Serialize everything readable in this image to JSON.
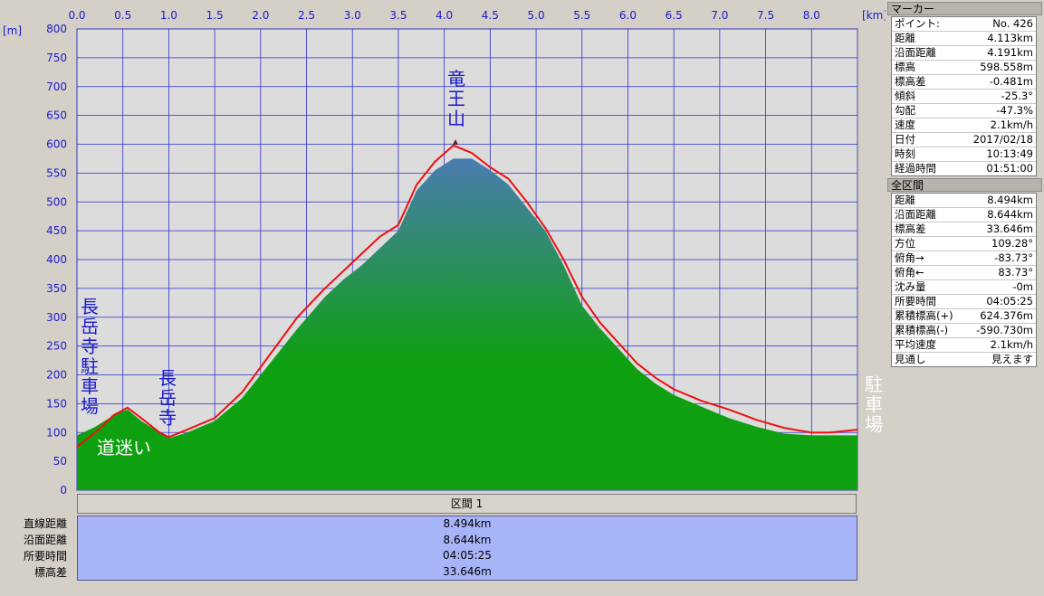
{
  "chart_data": {
    "type": "area",
    "xunit": "[km]",
    "yunit": "[m]",
    "xlim": [
      0,
      8.5
    ],
    "ylim": [
      0,
      800
    ],
    "xticks": [
      "0.0",
      "0.5",
      "1.0",
      "1.5",
      "2.0",
      "2.5",
      "3.0",
      "3.5",
      "4.0",
      "4.5",
      "5.0",
      "5.5",
      "6.0",
      "6.5",
      "7.0",
      "7.5",
      "8.0"
    ],
    "yticks": [
      "0",
      "50",
      "100",
      "150",
      "200",
      "250",
      "300",
      "350",
      "400",
      "450",
      "500",
      "550",
      "600",
      "650",
      "700",
      "750",
      "800"
    ],
    "series": [
      {
        "x": [
          0,
          0.2,
          0.4,
          0.55,
          0.7,
          0.9,
          1.0,
          1.2,
          1.5,
          1.8,
          2.1,
          2.4,
          2.7,
          2.9,
          3.1,
          3.3,
          3.5,
          3.7,
          3.9,
          4.1,
          4.3,
          4.5,
          4.7,
          4.9,
          5.1,
          5.3,
          5.5,
          5.7,
          5.9,
          6.1,
          6.3,
          6.5,
          6.8,
          7.1,
          7.4,
          7.7,
          8.0,
          8.2,
          8.5
        ],
        "y": [
          95,
          110,
          130,
          140,
          120,
          100,
          90,
          100,
          120,
          160,
          220,
          280,
          335,
          365,
          390,
          420,
          450,
          520,
          555,
          575,
          575,
          555,
          530,
          490,
          450,
          390,
          320,
          280,
          245,
          210,
          185,
          165,
          145,
          125,
          110,
          98,
          95,
          95,
          95
        ]
      },
      {
        "x": [
          0,
          0.2,
          0.4,
          0.55,
          0.7,
          0.9,
          1.0,
          1.2,
          1.5,
          1.8,
          2.1,
          2.4,
          2.7,
          2.9,
          3.1,
          3.3,
          3.5,
          3.7,
          3.9,
          4.1,
          4.3,
          4.5,
          4.7,
          4.9,
          5.1,
          5.3,
          5.5,
          5.7,
          5.9,
          6.1,
          6.3,
          6.5,
          6.8,
          7.1,
          7.4,
          7.7,
          8.0,
          8.2,
          8.5
        ],
        "y": [
          75,
          100,
          130,
          143,
          125,
          100,
          92,
          105,
          125,
          170,
          235,
          300,
          350,
          380,
          410,
          440,
          460,
          530,
          570,
          598,
          585,
          560,
          540,
          500,
          455,
          400,
          335,
          290,
          255,
          220,
          195,
          175,
          155,
          140,
          122,
          108,
          100,
          100,
          105
        ]
      }
    ]
  },
  "annotations": {
    "start": "長岳寺駐車場",
    "lost": "道迷い",
    "temple": "長岳寺",
    "summit": "竜王山",
    "end": "駐車場"
  },
  "segment": {
    "label": "区間 1"
  },
  "stats": {
    "labels": [
      "直線距離",
      "沿面距離",
      "所要時間",
      "標高差"
    ],
    "values": [
      "8.494km",
      "8.644km",
      "04:05:25",
      "33.646m"
    ]
  },
  "marker": {
    "title": "マーカー",
    "rows": [
      {
        "label": "ポイント:",
        "value": "No. 426"
      },
      {
        "label": "距離",
        "value": "4.113km"
      },
      {
        "label": "沿面距離",
        "value": "4.191km"
      },
      {
        "label": "標高",
        "value": "598.558m"
      },
      {
        "label": "標高差",
        "value": "-0.481m"
      },
      {
        "label": "傾斜",
        "value": "-25.3°"
      },
      {
        "label": "勾配",
        "value": "-47.3%"
      },
      {
        "label": "速度",
        "value": "2.1km/h"
      },
      {
        "label": "日付",
        "value": "2017/02/18"
      },
      {
        "label": "時刻",
        "value": "10:13:49"
      },
      {
        "label": "経過時間",
        "value": "01:51:00"
      }
    ]
  },
  "total": {
    "title": "全区間",
    "rows": [
      {
        "label": "距離",
        "value": "8.494km"
      },
      {
        "label": "沿面距離",
        "value": "8.644km"
      },
      {
        "label": "標高差",
        "value": "33.646m"
      },
      {
        "label": "方位",
        "value": "109.28°"
      },
      {
        "label": "俯角→",
        "value": "-83.73°"
      },
      {
        "label": "俯角←",
        "value": "83.73°"
      },
      {
        "label": "沈み量",
        "value": "-0m"
      },
      {
        "label": "所要時間",
        "value": "04:05:25"
      },
      {
        "label": "累積標高(+)",
        "value": "624.376m"
      },
      {
        "label": "累積標高(-)",
        "value": "-590.730m"
      },
      {
        "label": "平均速度",
        "value": "2.1km/h"
      },
      {
        "label": "見通し",
        "value": "見えます"
      }
    ]
  },
  "colors": {
    "profile_top": "#4a7cb0",
    "profile_bottom": "#0ea010",
    "track_line": "#ee1010",
    "grid": "#3030cc"
  }
}
